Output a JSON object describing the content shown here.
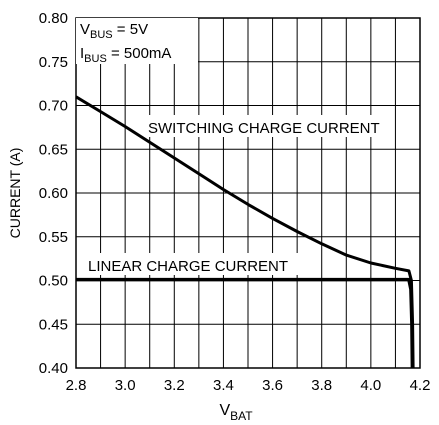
{
  "chart_data": {
    "type": "line",
    "title": "",
    "xlabel": "V",
    "xlabel_sub": "BAT",
    "ylabel": "CURRENT (A)",
    "xlim": [
      2.8,
      4.2
    ],
    "ylim": [
      0.4,
      0.8
    ],
    "grid": true,
    "x_ticks": [
      "2.8",
      "3.0",
      "3.2",
      "3.4",
      "3.6",
      "3.8",
      "4.0",
      "4.2"
    ],
    "y_ticks": [
      "0.80",
      "0.75",
      "0.70",
      "0.65",
      "0.60",
      "0.55",
      "0.50",
      "0.45",
      "0.40"
    ],
    "legend_box": {
      "line1_main": "V",
      "line1_sub": "BUS",
      "line1_rest": " = 5V",
      "line2_main": "I",
      "line2_sub": "BUS",
      "line2_rest": " = 500mA"
    },
    "series": [
      {
        "name": "SWITCHING CHARGE CURRENT",
        "x": [
          2.8,
          2.9,
          3.0,
          3.1,
          3.2,
          3.3,
          3.4,
          3.5,
          3.6,
          3.7,
          3.8,
          3.9,
          4.0,
          4.1,
          4.155,
          4.165,
          4.17,
          4.172
        ],
        "y": [
          0.71,
          0.693,
          0.676,
          0.658,
          0.64,
          0.622,
          0.604,
          0.587,
          0.571,
          0.556,
          0.542,
          0.529,
          0.52,
          0.514,
          0.511,
          0.5,
          0.45,
          0.4
        ]
      },
      {
        "name": "LINEAR CHARGE CURRENT",
        "x": [
          2.8,
          4.0,
          4.155,
          4.163,
          4.167,
          4.169
        ],
        "y": [
          0.501,
          0.501,
          0.501,
          0.49,
          0.45,
          0.4
        ]
      }
    ]
  }
}
